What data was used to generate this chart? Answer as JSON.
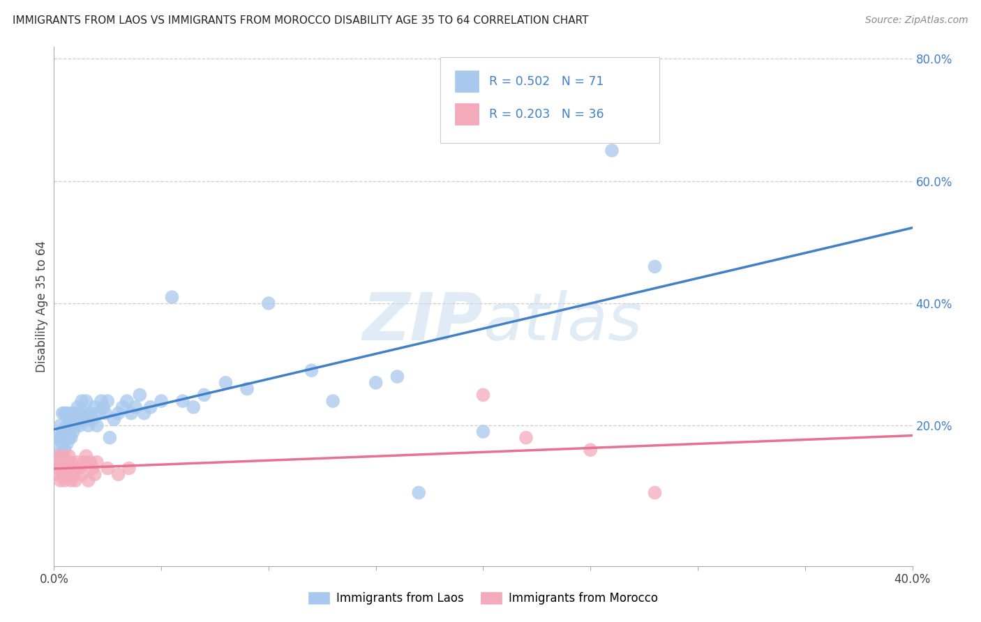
{
  "title": "IMMIGRANTS FROM LAOS VS IMMIGRANTS FROM MOROCCO DISABILITY AGE 35 TO 64 CORRELATION CHART",
  "source": "Source: ZipAtlas.com",
  "ylabel": "Disability Age 35 to 64",
  "legend_laos": "Immigrants from Laos",
  "legend_morocco": "Immigrants from Morocco",
  "r_laos": 0.502,
  "n_laos": 71,
  "r_morocco": 0.203,
  "n_morocco": 36,
  "color_laos": "#A8C8EE",
  "color_morocco": "#F4AABB",
  "line_color_laos": "#4080C8",
  "line_color_morocco": "#E87090",
  "text_color_blue": "#4080C8",
  "xmin": 0.0,
  "xmax": 0.4,
  "ymin": -0.03,
  "ymax": 0.82,
  "yticks_right": [
    0.0,
    0.2,
    0.4,
    0.6,
    0.8
  ],
  "ytick_labels_right": [
    "",
    "20.0%",
    "40.0%",
    "60.0%",
    "80.0%"
  ],
  "laos_x": [
    0.001,
    0.001,
    0.002,
    0.002,
    0.003,
    0.003,
    0.003,
    0.004,
    0.004,
    0.004,
    0.005,
    0.005,
    0.005,
    0.006,
    0.006,
    0.006,
    0.007,
    0.007,
    0.007,
    0.008,
    0.008,
    0.008,
    0.009,
    0.009,
    0.01,
    0.01,
    0.011,
    0.011,
    0.012,
    0.012,
    0.013,
    0.013,
    0.014,
    0.015,
    0.015,
    0.016,
    0.017,
    0.018,
    0.019,
    0.02,
    0.021,
    0.022,
    0.023,
    0.024,
    0.025,
    0.026,
    0.028,
    0.03,
    0.032,
    0.034,
    0.036,
    0.038,
    0.04,
    0.042,
    0.045,
    0.05,
    0.055,
    0.06,
    0.065,
    0.07,
    0.08,
    0.09,
    0.1,
    0.12,
    0.13,
    0.15,
    0.16,
    0.17,
    0.2,
    0.26,
    0.28
  ],
  "laos_y": [
    0.14,
    0.18,
    0.15,
    0.17,
    0.15,
    0.18,
    0.2,
    0.17,
    0.19,
    0.22,
    0.16,
    0.19,
    0.22,
    0.17,
    0.2,
    0.22,
    0.18,
    0.21,
    0.19,
    0.2,
    0.18,
    0.22,
    0.19,
    0.21,
    0.2,
    0.22,
    0.21,
    0.23,
    0.2,
    0.22,
    0.21,
    0.24,
    0.22,
    0.21,
    0.24,
    0.2,
    0.22,
    0.21,
    0.23,
    0.2,
    0.22,
    0.24,
    0.23,
    0.22,
    0.24,
    0.18,
    0.21,
    0.22,
    0.23,
    0.24,
    0.22,
    0.23,
    0.25,
    0.22,
    0.23,
    0.24,
    0.41,
    0.24,
    0.23,
    0.25,
    0.27,
    0.26,
    0.4,
    0.29,
    0.24,
    0.27,
    0.28,
    0.09,
    0.19,
    0.65,
    0.46
  ],
  "morocco_x": [
    0.001,
    0.001,
    0.002,
    0.002,
    0.003,
    0.003,
    0.004,
    0.004,
    0.005,
    0.005,
    0.006,
    0.006,
    0.007,
    0.007,
    0.008,
    0.008,
    0.009,
    0.01,
    0.01,
    0.011,
    0.012,
    0.013,
    0.014,
    0.015,
    0.016,
    0.017,
    0.018,
    0.019,
    0.02,
    0.025,
    0.03,
    0.035,
    0.2,
    0.22,
    0.25,
    0.28
  ],
  "morocco_y": [
    0.12,
    0.14,
    0.13,
    0.15,
    0.11,
    0.14,
    0.12,
    0.15,
    0.13,
    0.11,
    0.14,
    0.12,
    0.13,
    0.15,
    0.11,
    0.14,
    0.12,
    0.13,
    0.11,
    0.14,
    0.13,
    0.12,
    0.14,
    0.15,
    0.11,
    0.14,
    0.13,
    0.12,
    0.14,
    0.13,
    0.12,
    0.13,
    0.25,
    0.18,
    0.16,
    0.09
  ],
  "watermark_zip": "ZIP",
  "watermark_atlas": "atlas",
  "background_color": "#FFFFFF",
  "grid_color": "#CCCCCC"
}
